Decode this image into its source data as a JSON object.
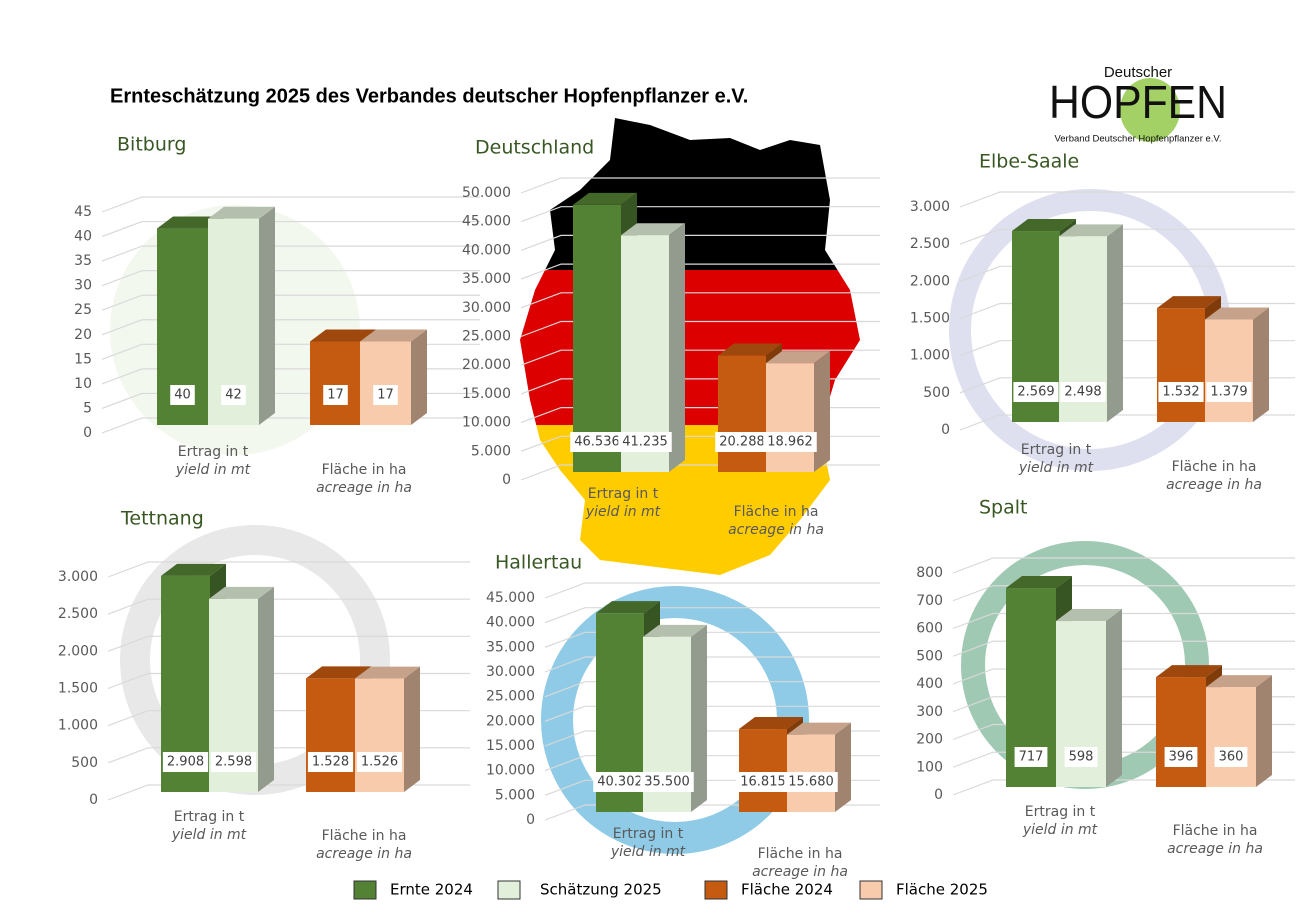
{
  "title": "Ernteschätzung 2025 des Verbandes deutscher Hopfenpflanzer e.V.",
  "logo": {
    "top": "Deutscher",
    "main": "HOPFEN",
    "sub": "Verband Deutscher Hopfenpflanzer e.V."
  },
  "legend": [
    {
      "name": "Ernte 2024",
      "color": "#548235"
    },
    {
      "name": "Schätzung 2025",
      "color": "#e2efda"
    },
    {
      "name": "Fläche 2024",
      "color": "#c55a11"
    },
    {
      "name": "Fläche 2025",
      "color": "#f8cbad"
    }
  ],
  "chart_data": [
    {
      "type": "bar",
      "title": "Bitburg",
      "categories": [
        "Ertrag in t",
        "Fläche in ha"
      ],
      "category_subtitles": [
        "yield in mt",
        "acreage in ha"
      ],
      "values": [
        [
          40,
          42
        ],
        [
          17,
          17
        ]
      ],
      "ylim": [
        0,
        45
      ],
      "yticks": [
        0,
        5,
        10,
        15,
        20,
        25,
        30,
        35,
        40,
        45
      ]
    },
    {
      "type": "bar",
      "title": "Deutschland",
      "categories": [
        "Ertrag in t",
        "Fläche in ha"
      ],
      "category_subtitles": [
        "yield in mt",
        "acreage in ha"
      ],
      "values": [
        [
          46536,
          41235
        ],
        [
          20288,
          18962
        ]
      ],
      "value_labels": [
        [
          "46.536",
          "41.235"
        ],
        [
          "20.288",
          "18.962"
        ]
      ],
      "ylim": [
        0,
        50000
      ],
      "yticks": [
        0,
        {
          "value": 5000,
          "label": "5.000"
        },
        {
          "value": 10000,
          "label": "10.000"
        },
        {
          "value": 15000,
          "label": "15.000"
        },
        {
          "value": 20000,
          "label": "20.000"
        },
        {
          "value": 25000,
          "label": "25.000"
        },
        {
          "value": 30000,
          "label": "30.000"
        },
        {
          "value": 35000,
          "label": "35.000"
        },
        {
          "value": 40000,
          "label": "40.000"
        },
        {
          "value": 45000,
          "label": "45.000"
        },
        {
          "value": 50000,
          "label": "50.000"
        }
      ]
    },
    {
      "type": "bar",
      "title": "Elbe-Saale",
      "categories": [
        "Ertrag in t",
        "Fläche in ha"
      ],
      "category_subtitles": [
        "yield in mt",
        "acreage in ha"
      ],
      "values": [
        [
          2569,
          2498
        ],
        [
          1532,
          1379
        ]
      ],
      "value_labels": [
        [
          "2.569",
          "2.498"
        ],
        [
          "1.532",
          "1.379"
        ]
      ],
      "ylim": [
        0,
        3000
      ],
      "yticks": [
        0,
        500,
        {
          "value": 1000,
          "label": "1.000"
        },
        {
          "value": 1500,
          "label": "1.500"
        },
        {
          "value": 2000,
          "label": "2.000"
        },
        {
          "value": 2500,
          "label": "2.500"
        },
        {
          "value": 3000,
          "label": "3.000"
        }
      ]
    },
    {
      "type": "bar",
      "title": "Tettnang",
      "categories": [
        "Ertrag in t",
        "Fläche in ha"
      ],
      "category_subtitles": [
        "yield in mt",
        "acreage in ha"
      ],
      "values": [
        [
          2908,
          2598
        ],
        [
          1528,
          1526
        ]
      ],
      "value_labels": [
        [
          "2.908",
          "2.598"
        ],
        [
          "1.528",
          "1.526"
        ]
      ],
      "ylim": [
        0,
        3000
      ],
      "yticks": [
        0,
        500,
        {
          "value": 1000,
          "label": "1.000"
        },
        {
          "value": 1500,
          "label": "1.500"
        },
        {
          "value": 2000,
          "label": "2.000"
        },
        {
          "value": 2500,
          "label": "2.500"
        },
        {
          "value": 3000,
          "label": "3.000"
        }
      ]
    },
    {
      "type": "bar",
      "title": "Hallertau",
      "categories": [
        "Ertrag in t",
        "Fläche in ha"
      ],
      "category_subtitles": [
        "yield in mt",
        "acreage in ha"
      ],
      "values": [
        [
          40302,
          35500
        ],
        [
          16815,
          15680
        ]
      ],
      "value_labels": [
        [
          "40.302",
          "35.500"
        ],
        [
          "16.815",
          "15.680"
        ]
      ],
      "ylim": [
        0,
        45000
      ],
      "yticks": [
        0,
        {
          "value": 5000,
          "label": "5.000"
        },
        {
          "value": 10000,
          "label": "10.000"
        },
        {
          "value": 15000,
          "label": "15.000"
        },
        {
          "value": 20000,
          "label": "20.000"
        },
        {
          "value": 25000,
          "label": "25.000"
        },
        {
          "value": 30000,
          "label": "30.000"
        },
        {
          "value": 35000,
          "label": "35.000"
        },
        {
          "value": 40000,
          "label": "40.000"
        },
        {
          "value": 45000,
          "label": "45.000"
        }
      ]
    },
    {
      "type": "bar",
      "title": "Spalt",
      "categories": [
        "Ertrag in t",
        "Fläche in ha"
      ],
      "category_subtitles": [
        "yield in mt",
        "acreage in ha"
      ],
      "values": [
        [
          717,
          598
        ],
        [
          396,
          360
        ]
      ],
      "ylim": [
        0,
        800
      ],
      "yticks": [
        0,
        100,
        200,
        300,
        400,
        500,
        600,
        700,
        800
      ]
    }
  ]
}
